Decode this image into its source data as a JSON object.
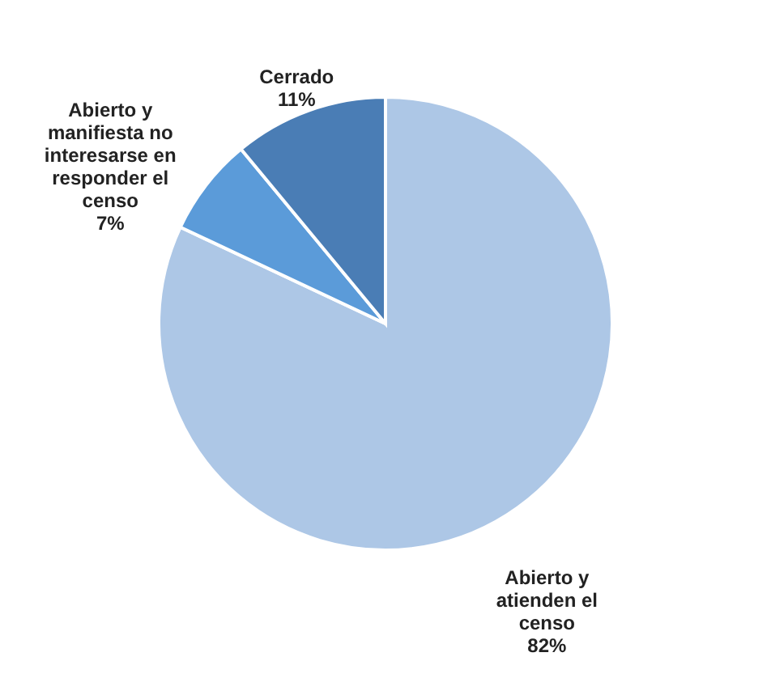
{
  "chart_data": {
    "type": "pie",
    "categories": [
      "Abierto y atienden el censo",
      "Abierto y manifiesta no interesarse en responder el censo",
      "Cerrado"
    ],
    "values": [
      82,
      7,
      11
    ],
    "value_labels": [
      "82%",
      "7%",
      "11%"
    ],
    "colors": [
      "#adc7e6",
      "#5b9bd9",
      "#4a7db5"
    ]
  }
}
